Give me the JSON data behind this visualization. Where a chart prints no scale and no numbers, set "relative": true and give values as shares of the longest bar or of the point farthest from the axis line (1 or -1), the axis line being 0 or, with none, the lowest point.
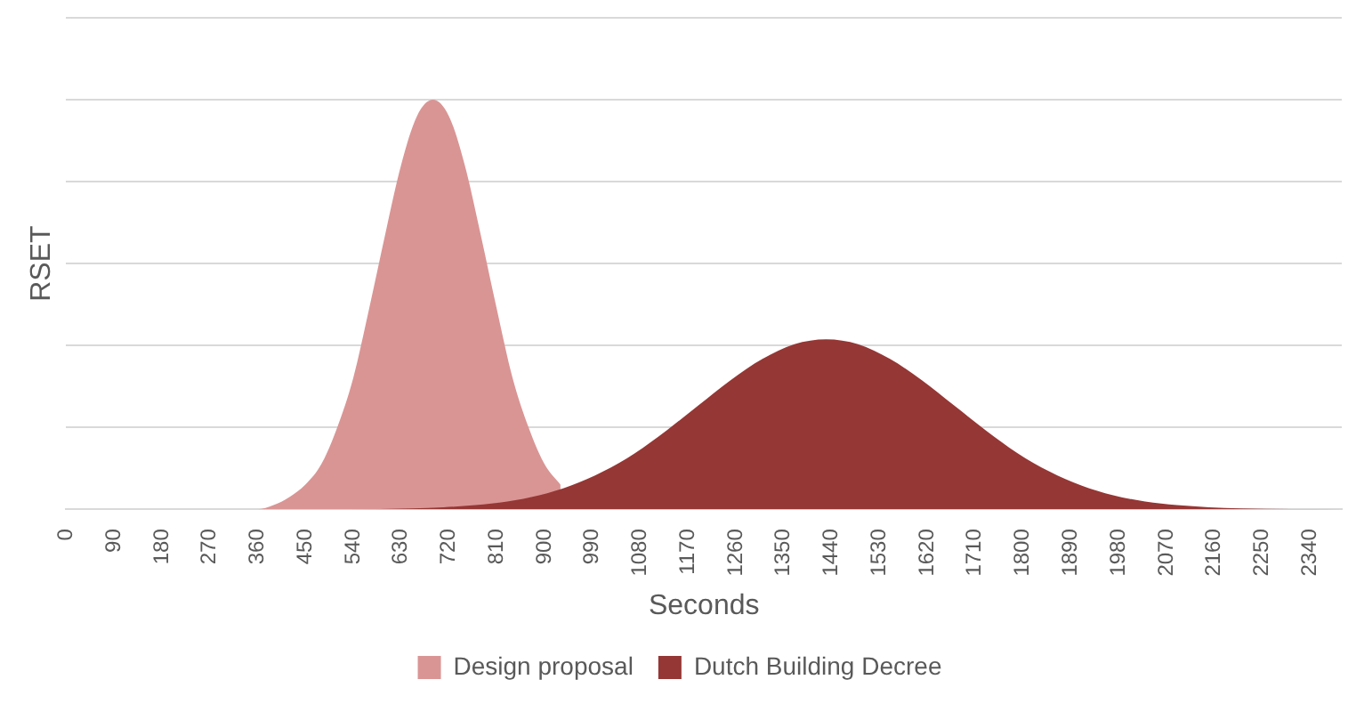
{
  "chart_data": {
    "type": "area",
    "xlabel": "Seconds",
    "ylabel": "RSET",
    "relative": true,
    "grid": "y",
    "legend": "bottom",
    "xlim": [
      0,
      2400
    ],
    "xticks": [
      0,
      90,
      180,
      270,
      360,
      450,
      540,
      630,
      720,
      810,
      900,
      990,
      1080,
      1170,
      1260,
      1350,
      1440,
      1530,
      1620,
      1710,
      1800,
      1890,
      1980,
      2070,
      2160,
      2250,
      2340
    ],
    "series": [
      {
        "name": "Design proposal",
        "color": "#d99594",
        "x": [
          0,
          300,
          360,
          390,
          420,
          450,
          480,
          510,
          540,
          570,
          600,
          630,
          660,
          690,
          720,
          750,
          780,
          810,
          840,
          870,
          900,
          930
        ],
        "values": [
          0,
          0,
          0,
          0.01,
          0.03,
          0.06,
          0.11,
          0.2,
          0.32,
          0.49,
          0.67,
          0.84,
          0.96,
          1,
          0.96,
          0.84,
          0.67,
          0.49,
          0.32,
          0.2,
          0.11,
          0.06
        ]
      },
      {
        "name": "Dutch Building Decree",
        "color": "#953735",
        "x": [
          0,
          530,
          650,
          710,
          770,
          830,
          890,
          950,
          1010,
          1070,
          1130,
          1190,
          1250,
          1310,
          1370,
          1430,
          1490,
          1550,
          1610,
          1670,
          1730,
          1790,
          1850,
          1910,
          1970,
          2030,
          2090,
          2150,
          2210,
          2400
        ],
        "values": [
          0,
          0,
          0.002,
          0.005,
          0.01,
          0.019,
          0.034,
          0.058,
          0.092,
          0.137,
          0.193,
          0.254,
          0.315,
          0.367,
          0.403,
          0.415,
          0.403,
          0.367,
          0.315,
          0.254,
          0.193,
          0.137,
          0.092,
          0.058,
          0.034,
          0.019,
          0.01,
          0.005,
          0.002,
          0
        ]
      }
    ]
  }
}
